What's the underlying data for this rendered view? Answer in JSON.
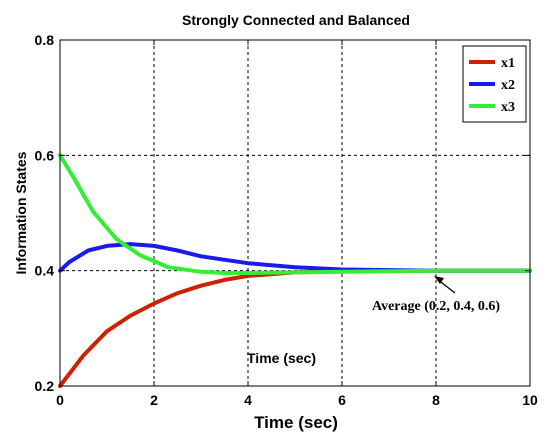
{
  "chart_data": {
    "type": "line",
    "title": "Strongly Connected and Balanced",
    "xlabel": "Time (sec)",
    "ylabel": "Information States",
    "xlim": [
      0,
      10
    ],
    "ylim": [
      0.2,
      0.8
    ],
    "xticks": [
      0,
      2,
      4,
      6,
      8,
      10
    ],
    "yticks": [
      0.2,
      0.4,
      0.6,
      0.8
    ],
    "xtick_labels": [
      "0",
      "2",
      "4",
      "6",
      "8",
      "10"
    ],
    "ytick_labels": [
      "0.2",
      "0.4",
      "0.6",
      "0.8"
    ],
    "grid": true,
    "legend_position": "top-right",
    "series": [
      {
        "name": "x1",
        "color": "#cc2200",
        "x": [
          0,
          0.5,
          1,
          1.5,
          2,
          2.5,
          3,
          3.5,
          4,
          5,
          6,
          7,
          8,
          9,
          10
        ],
        "y": [
          0.2,
          0.253,
          0.295,
          0.322,
          0.343,
          0.361,
          0.374,
          0.384,
          0.391,
          0.397,
          0.399,
          0.4,
          0.4,
          0.4,
          0.4
        ]
      },
      {
        "name": "x2",
        "color": "#1a1aee",
        "x": [
          0,
          0.2,
          0.6,
          1,
          1.5,
          2,
          2.5,
          3,
          4,
          5,
          6,
          7,
          8,
          9,
          10
        ],
        "y": [
          0.4,
          0.415,
          0.435,
          0.443,
          0.446,
          0.443,
          0.435,
          0.425,
          0.413,
          0.406,
          0.402,
          0.401,
          0.4,
          0.4,
          0.4
        ]
      },
      {
        "name": "x3",
        "color": "#33ee33",
        "x": [
          0,
          0.3,
          0.7,
          1.2,
          1.7,
          2.3,
          3,
          3.5,
          4,
          5,
          6,
          7,
          8,
          9,
          10
        ],
        "y": [
          0.6,
          0.56,
          0.503,
          0.455,
          0.427,
          0.406,
          0.398,
          0.396,
          0.396,
          0.397,
          0.398,
          0.399,
          0.4,
          0.4,
          0.4
        ]
      }
    ],
    "annotations": [
      {
        "id": "avg",
        "text": "Average (0.2, 0.4, 0.6)",
        "arrow_to": [
          7.6,
          0.4
        ]
      },
      {
        "id": "inner_time",
        "text": "Time (sec)"
      }
    ]
  }
}
